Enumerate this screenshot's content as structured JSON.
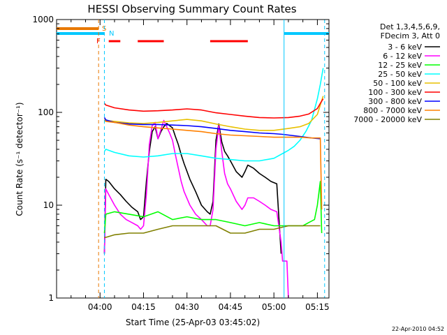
{
  "chart_data": {
    "type": "line",
    "title": "HESSI Observing Summary Count Rates",
    "xlabel": "Start Time (25-Apr-03 03:45:02)",
    "ylabel": "Count Rate (s⁻¹ detector⁻¹)",
    "y_scale": "log",
    "ylim": [
      1,
      1000
    ],
    "xlim_minutes": [
      0,
      94
    ],
    "x_ticks": [
      {
        "minute": 15,
        "label": "04:00"
      },
      {
        "minute": 30,
        "label": "04:15"
      },
      {
        "minute": 45,
        "label": "04:30"
      },
      {
        "minute": 60,
        "label": "04:45"
      },
      {
        "minute": 75,
        "label": "05:00"
      },
      {
        "minute": 90,
        "label": "05:15"
      }
    ],
    "y_ticks": [
      {
        "value": 1,
        "label": "1"
      },
      {
        "value": 10,
        "label": "10"
      },
      {
        "value": 100,
        "label": "100"
      },
      {
        "value": 1000,
        "label": "1000"
      }
    ],
    "legend_header": [
      "Det 1,3,4,5,6,9,",
      "FDecim 3, Att 0"
    ],
    "legend_position": "top-right, outside plot",
    "flags": {
      "S": {
        "label": "S",
        "color": "#e87800"
      },
      "N": {
        "label": "N",
        "color": "#00c8ff"
      },
      "F": {
        "label": "F",
        "color": "#ff0000"
      }
    },
    "flag_segments": {
      "S": [
        [
          0,
          14.5
        ]
      ],
      "N": [
        [
          0,
          16.5
        ],
        [
          78.5,
          94
        ]
      ],
      "F": [
        [
          18,
          22
        ],
        [
          28,
          37
        ],
        [
          53,
          66
        ]
      ]
    },
    "series": [
      {
        "name": "3 - 6 keV",
        "color": "#000000",
        "points": [
          [
            16.5,
            3
          ],
          [
            17,
            19
          ],
          [
            18,
            18
          ],
          [
            20,
            15
          ],
          [
            22,
            13
          ],
          [
            24,
            11
          ],
          [
            26,
            9.5
          ],
          [
            28,
            8.5
          ],
          [
            29,
            7
          ],
          [
            30,
            7.5
          ],
          [
            31,
            18
          ],
          [
            32,
            38
          ],
          [
            33,
            62
          ],
          [
            34,
            70
          ],
          [
            35,
            52
          ],
          [
            36,
            62
          ],
          [
            37,
            70
          ],
          [
            38,
            76
          ],
          [
            39,
            72
          ],
          [
            40,
            68
          ],
          [
            41,
            55
          ],
          [
            42,
            45
          ],
          [
            43,
            35
          ],
          [
            44,
            28
          ],
          [
            46,
            19
          ],
          [
            48,
            14
          ],
          [
            50,
            10
          ],
          [
            52,
            8.5
          ],
          [
            53,
            8
          ],
          [
            54,
            11
          ],
          [
            55,
            50
          ],
          [
            56,
            75
          ],
          [
            57,
            48
          ],
          [
            58,
            38
          ],
          [
            59,
            34
          ],
          [
            60,
            30
          ],
          [
            62,
            23
          ],
          [
            64,
            20
          ],
          [
            65,
            23
          ],
          [
            66,
            27
          ],
          [
            68,
            25
          ],
          [
            70,
            22
          ],
          [
            72,
            20
          ],
          [
            74,
            18
          ],
          [
            76,
            17
          ],
          [
            77.5,
            3
          ]
        ]
      },
      {
        "name": "6 - 12 keV",
        "color": "#ff00ff",
        "points": [
          [
            16.5,
            3
          ],
          [
            17,
            15
          ],
          [
            18,
            13
          ],
          [
            20,
            10
          ],
          [
            22,
            8
          ],
          [
            24,
            7
          ],
          [
            26,
            6.5
          ],
          [
            28,
            6
          ],
          [
            29,
            5.5
          ],
          [
            30,
            6
          ],
          [
            31,
            13
          ],
          [
            32,
            45
          ],
          [
            33,
            72
          ],
          [
            34,
            78
          ],
          [
            35,
            52
          ],
          [
            36,
            65
          ],
          [
            37,
            82
          ],
          [
            38,
            70
          ],
          [
            39,
            60
          ],
          [
            40,
            50
          ],
          [
            41,
            35
          ],
          [
            42,
            25
          ],
          [
            43,
            18
          ],
          [
            44,
            14
          ],
          [
            46,
            10
          ],
          [
            48,
            8
          ],
          [
            50,
            7
          ],
          [
            52,
            6
          ],
          [
            53,
            6
          ],
          [
            54,
            9
          ],
          [
            55,
            40
          ],
          [
            56,
            72
          ],
          [
            57,
            38
          ],
          [
            58,
            22
          ],
          [
            59,
            17
          ],
          [
            60,
            15
          ],
          [
            62,
            11
          ],
          [
            64,
            9
          ],
          [
            65,
            10
          ],
          [
            66,
            12
          ],
          [
            68,
            12
          ],
          [
            70,
            11
          ],
          [
            72,
            10
          ],
          [
            74,
            9
          ],
          [
            76,
            8.5
          ],
          [
            77.5,
            4
          ],
          [
            78,
            2.5
          ],
          [
            79.5,
            2.5
          ],
          [
            80,
            1
          ]
        ]
      },
      {
        "name": "12 - 25 keV",
        "color": "#00ff00",
        "points": [
          [
            16.5,
            5
          ],
          [
            17,
            8
          ],
          [
            20,
            8.5
          ],
          [
            25,
            8
          ],
          [
            30,
            7.5
          ],
          [
            35,
            8.5
          ],
          [
            40,
            7
          ],
          [
            45,
            7.5
          ],
          [
            50,
            7
          ],
          [
            55,
            7
          ],
          [
            60,
            6.5
          ],
          [
            65,
            6
          ],
          [
            70,
            6.5
          ],
          [
            75,
            6
          ],
          [
            80,
            6
          ],
          [
            85,
            6
          ],
          [
            87,
            6.5
          ],
          [
            89,
            7
          ],
          [
            90,
            10
          ],
          [
            91,
            18
          ],
          [
            91.5,
            5
          ]
        ]
      },
      {
        "name": "25 - 50 keV",
        "color": "#00ffff",
        "points": [
          [
            16.5,
            38
          ],
          [
            17,
            40
          ],
          [
            20,
            37
          ],
          [
            25,
            34
          ],
          [
            30,
            33
          ],
          [
            35,
            34
          ],
          [
            40,
            36
          ],
          [
            45,
            36
          ],
          [
            50,
            34
          ],
          [
            55,
            32
          ],
          [
            60,
            31
          ],
          [
            65,
            30
          ],
          [
            70,
            30
          ],
          [
            75,
            32
          ],
          [
            78,
            36
          ],
          [
            80,
            39
          ],
          [
            82,
            43
          ],
          [
            84,
            50
          ],
          [
            86,
            62
          ],
          [
            88,
            82
          ],
          [
            90,
            140
          ],
          [
            91,
            200
          ],
          [
            92,
            300
          ]
        ]
      },
      {
        "name": "50 - 100 keV",
        "color": "#e8c000",
        "points": [
          [
            16.5,
            85
          ],
          [
            17,
            82
          ],
          [
            20,
            80
          ],
          [
            25,
            77
          ],
          [
            30,
            76
          ],
          [
            35,
            78
          ],
          [
            40,
            81
          ],
          [
            45,
            84
          ],
          [
            50,
            81
          ],
          [
            55,
            75
          ],
          [
            60,
            70
          ],
          [
            65,
            66
          ],
          [
            70,
            64
          ],
          [
            75,
            64
          ],
          [
            80,
            67
          ],
          [
            84,
            70
          ],
          [
            87,
            76
          ],
          [
            90,
            95
          ],
          [
            91,
            120
          ],
          [
            92,
            150
          ]
        ]
      },
      {
        "name": "100 - 300 keV",
        "color": "#ff0000",
        "points": [
          [
            16.5,
            125
          ],
          [
            17,
            120
          ],
          [
            20,
            112
          ],
          [
            25,
            106
          ],
          [
            30,
            103
          ],
          [
            35,
            104
          ],
          [
            40,
            106
          ],
          [
            45,
            109
          ],
          [
            50,
            106
          ],
          [
            55,
            99
          ],
          [
            60,
            95
          ],
          [
            65,
            91
          ],
          [
            70,
            88
          ],
          [
            75,
            87
          ],
          [
            80,
            88
          ],
          [
            84,
            91
          ],
          [
            87,
            96
          ],
          [
            90,
            110
          ],
          [
            91,
            125
          ],
          [
            92,
            140
          ]
        ]
      },
      {
        "name": "300 - 800 keV",
        "color": "#0000ff",
        "points": [
          [
            16.5,
            88
          ],
          [
            17,
            83
          ],
          [
            20,
            78
          ],
          [
            25,
            75
          ],
          [
            30,
            74
          ],
          [
            35,
            74
          ],
          [
            40,
            73
          ],
          [
            45,
            72
          ],
          [
            50,
            70
          ],
          [
            55,
            67
          ],
          [
            60,
            64
          ],
          [
            65,
            62
          ],
          [
            70,
            60
          ],
          [
            75,
            59
          ],
          [
            78,
            58
          ],
          [
            80,
            57
          ],
          [
            84,
            55
          ],
          [
            88,
            53
          ],
          [
            91,
            52
          ]
        ]
      },
      {
        "name": "800 - 7000 keV",
        "color": "#ff8000",
        "points": [
          [
            16.5,
            82
          ],
          [
            17,
            80
          ],
          [
            20,
            78
          ],
          [
            25,
            73
          ],
          [
            30,
            70
          ],
          [
            35,
            68
          ],
          [
            40,
            66
          ],
          [
            45,
            64
          ],
          [
            50,
            62
          ],
          [
            55,
            59
          ],
          [
            60,
            57
          ],
          [
            65,
            56
          ],
          [
            70,
            55
          ],
          [
            75,
            54
          ],
          [
            78,
            54
          ],
          [
            80,
            54
          ],
          [
            84,
            54
          ],
          [
            88,
            53
          ],
          [
            91,
            53
          ],
          [
            91.5,
            9
          ]
        ]
      },
      {
        "name": "7000 - 20000 keV",
        "color": "#808000",
        "points": [
          [
            16.5,
            4.5
          ],
          [
            17,
            4.5
          ],
          [
            20,
            4.8
          ],
          [
            25,
            5
          ],
          [
            30,
            5
          ],
          [
            35,
            5.5
          ],
          [
            40,
            6
          ],
          [
            45,
            6
          ],
          [
            50,
            6
          ],
          [
            55,
            6
          ],
          [
            60,
            5
          ],
          [
            65,
            5
          ],
          [
            70,
            5.5
          ],
          [
            75,
            5.5
          ],
          [
            78,
            5.8
          ],
          [
            80,
            6
          ],
          [
            85,
            6
          ],
          [
            88,
            6
          ],
          [
            91,
            6
          ]
        ]
      }
    ]
  },
  "timestamp": "22-Apr-2010 04:52"
}
